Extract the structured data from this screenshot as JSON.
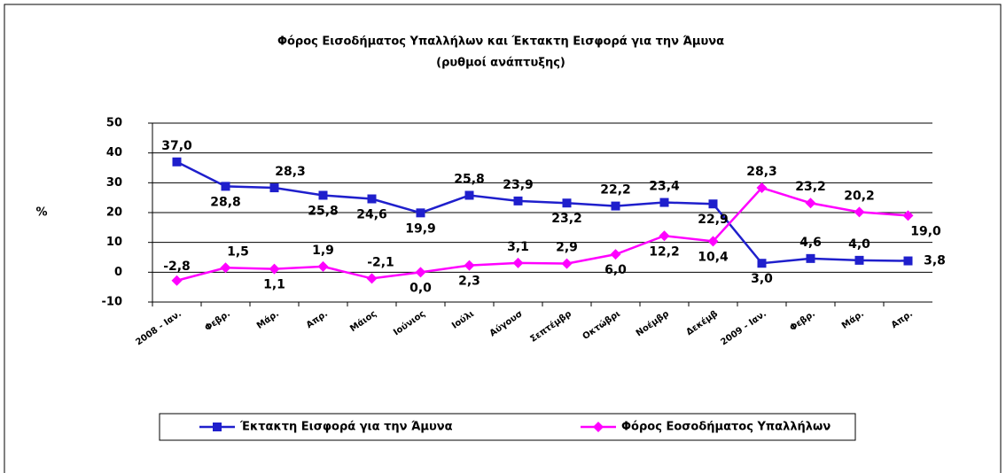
{
  "chart_data": {
    "type": "line",
    "title": "Φόρος Εισοδήματος Υπαλλήλων και Έκτακτη Εισφορά για την Άμυνα",
    "subtitle": "(ρυθμοί ανάπτυξης)",
    "y_label": "%",
    "categories": [
      "2008 - Ιαν.",
      "Φεβρ.",
      "Μάρ.",
      "Απρ.",
      "Μάιος",
      "Ιούνιος",
      "Ιούλι",
      "Αύγουσ",
      "Σεπτέμβρ",
      "Οκτώβρι",
      "Νοέμβρ",
      "Δεκέμβ",
      "2009 - Ιαν.",
      "Φεβρ.",
      "Μάρ.",
      "Απρ."
    ],
    "series": [
      {
        "name": "Έκτακτη Εισφορά για την Άμυνα",
        "color": "#1f1fcc",
        "marker": "square",
        "values": [
          37.0,
          28.8,
          28.3,
          25.8,
          24.6,
          19.9,
          25.8,
          23.9,
          23.2,
          22.2,
          23.4,
          22.9,
          3.0,
          4.6,
          4.0,
          3.8
        ],
        "value_labels": [
          "37,0",
          "28,8",
          "28,3",
          "25,8",
          "24,6",
          "19,9",
          "25,8",
          "23,9",
          "23,2",
          "22,2",
          "23,4",
          "22,9",
          "3,0",
          "4,6",
          "4,0",
          "3,8"
        ]
      },
      {
        "name": "Φόρος Εοσοδήματος Υπαλλήλων",
        "color": "#ff00ff",
        "marker": "diamond",
        "values": [
          -2.8,
          1.5,
          1.1,
          1.9,
          -2.1,
          0.0,
          2.3,
          3.1,
          2.9,
          6.0,
          12.2,
          10.4,
          28.3,
          23.2,
          20.2,
          19.0
        ],
        "value_labels": [
          "-2,8",
          "1,5",
          "1,1",
          "1,9",
          "-2,1",
          "0,0",
          "2,3",
          "3,1",
          "2,9",
          "6,0",
          "12,2",
          "10,4",
          "28,3",
          "23,2",
          "20,2",
          "19,0"
        ]
      }
    ],
    "ylim": [
      -10,
      50
    ],
    "yticks": [
      -10,
      0,
      10,
      20,
      30,
      40,
      50
    ],
    "grid": true,
    "legend": "bottom"
  }
}
